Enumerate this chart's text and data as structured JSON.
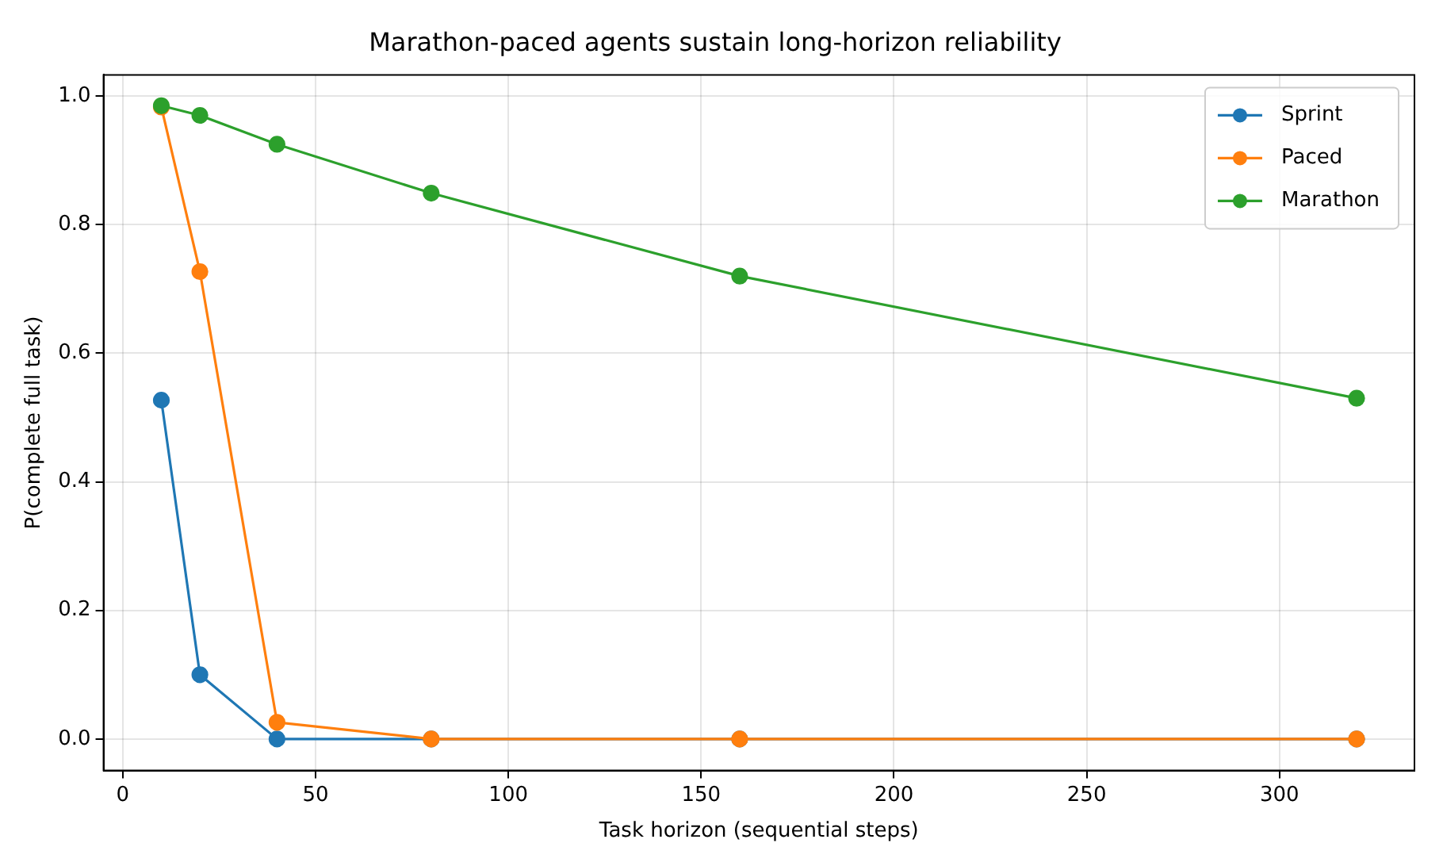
{
  "chart_data": {
    "type": "line",
    "title": "Marathon-paced agents sustain long-horizon reliability",
    "xlabel": "Task horizon (sequential steps)",
    "ylabel": "P(complete full task)",
    "x": [
      10,
      20,
      40,
      80,
      160,
      320
    ],
    "series": [
      {
        "name": "Sprint",
        "color": "#1f77b4",
        "values": [
          0.527,
          0.1,
          0.0,
          0.0,
          0.0,
          0.0
        ]
      },
      {
        "name": "Paced",
        "color": "#ff7f0e",
        "values": [
          0.983,
          0.727,
          0.026,
          0.0,
          0.0,
          0.0
        ]
      },
      {
        "name": "Marathon",
        "color": "#2ca02c",
        "values": [
          0.985,
          0.97,
          0.925,
          0.849,
          0.72,
          0.53
        ]
      }
    ],
    "xlim": [
      -5,
      335
    ],
    "xticks": [
      0,
      50,
      100,
      150,
      200,
      250,
      300
    ],
    "ylim": [
      -0.049,
      1.033
    ],
    "yticks": [
      {
        "value": 0,
        "label": "0.0"
      },
      {
        "value": 0.2,
        "label": "0.2"
      },
      {
        "value": 0.4,
        "label": "0.4"
      },
      {
        "value": 0.6,
        "label": "0.6"
      },
      {
        "value": 0.8,
        "label": "0.8"
      },
      {
        "value": 1,
        "label": "1.0"
      }
    ],
    "grid": true,
    "legend": "top right",
    "marker": "circle",
    "line_style": "solid"
  }
}
